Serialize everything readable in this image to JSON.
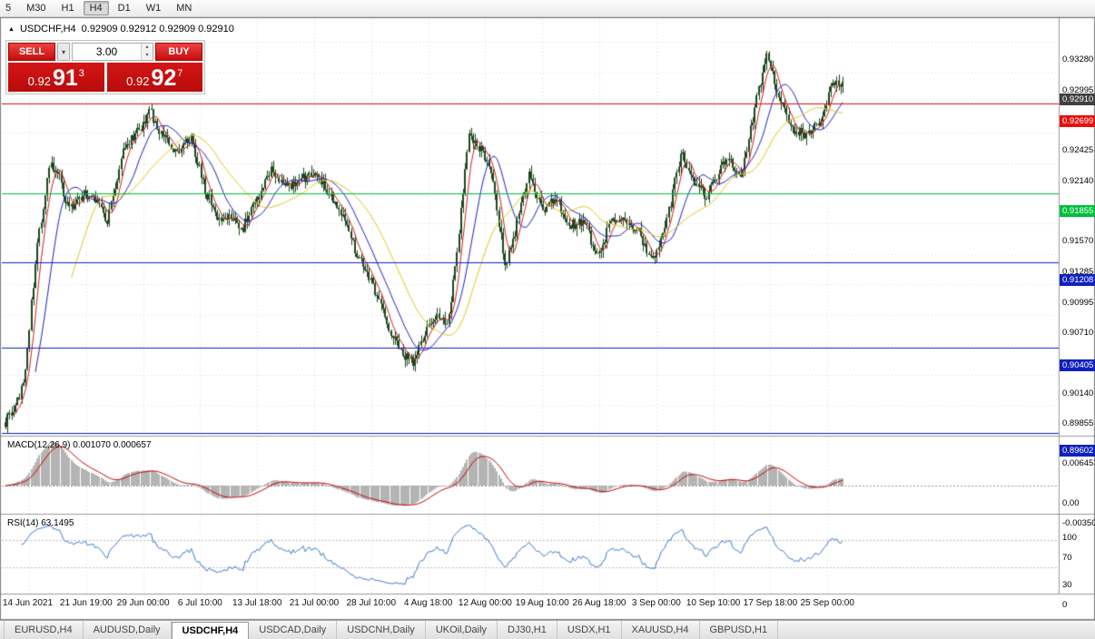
{
  "toolbar": {
    "timeframes": [
      {
        "label": "5",
        "active": false
      },
      {
        "label": "M30",
        "active": false
      },
      {
        "label": "H1",
        "active": false
      },
      {
        "label": "H4",
        "active": true
      },
      {
        "label": "D1",
        "active": false
      },
      {
        "label": "W1",
        "active": false
      },
      {
        "label": "MN",
        "active": false
      }
    ]
  },
  "chart": {
    "symbol": "USDCHF,H4",
    "ohlc_text": "0.92909 0.92912 0.92909 0.92910",
    "current_price": {
      "label": "0.92910",
      "bg": "#404040"
    }
  },
  "one_click": {
    "sell_label": "SELL",
    "buy_label": "BUY",
    "volume": "3.00",
    "sell_price": {
      "small": "0.92",
      "big": "91",
      "sup": "3"
    },
    "buy_price": {
      "small": "0.92",
      "big": "92",
      "sup": "7"
    }
  },
  "price_axis_plain": [
    "0.93280",
    "0.92995",
    "0.92425",
    "0.92140",
    "0.91570",
    "0.91285",
    "0.90995",
    "0.90710",
    "0.90140",
    "0.89855"
  ],
  "macd": {
    "title": "MACD(12,26,9) 0.001070 0.000657",
    "axis_labels": [
      "0.006451",
      "0.00",
      "-0.00350"
    ]
  },
  "rsi": {
    "title": "RSI(14) 63.1495",
    "axis_labels": [
      100,
      70,
      30,
      0
    ],
    "levels": [
      70,
      30
    ]
  },
  "time_axis": {
    "labels": [
      "14 Jun 2021",
      "21 Jun 19:00",
      "29 Jun 00:00",
      "6 Jul 10:00",
      "13 Jul 18:00",
      "21 Jul 00:00",
      "28 Jul 10:00",
      "4 Aug 18:00",
      "12 Aug 00:00",
      "19 Aug 10:00",
      "26 Aug 18:00",
      "3 Sep 00:00",
      "10 Sep 10:00",
      "17 Sep 18:00",
      "25 Sep 00:00"
    ]
  },
  "tabs": {
    "items": [
      {
        "label": "EURUSD,H4",
        "active": false
      },
      {
        "label": "AUDUSD,Daily",
        "active": false
      },
      {
        "label": "USDCHF,H4",
        "active": true
      },
      {
        "label": "USDCAD,Daily",
        "active": false
      },
      {
        "label": "USDCNH,Daily",
        "active": false
      },
      {
        "label": "UKOil,Daily",
        "active": false
      },
      {
        "label": "DJ30,H1",
        "active": false
      },
      {
        "label": "USDX,H1",
        "active": false
      },
      {
        "label": "XAUUSD,H4",
        "active": false
      },
      {
        "label": "GBPUSD,H1",
        "active": false
      }
    ]
  },
  "chart_data": {
    "type": "candlestick",
    "symbol": "USDCHF",
    "timeframe": "H4",
    "current": {
      "open": 0.92909,
      "high": 0.92912,
      "low": 0.92909,
      "close": 0.9291
    },
    "price_range": [
      0.896,
      0.9348
    ],
    "bars": 420,
    "candle_color": "#1e461e",
    "price_path": [
      [
        0.0,
        0.897
      ],
      [
        0.011,
        0.8985
      ],
      [
        0.022,
        0.9005
      ],
      [
        0.038,
        0.914
      ],
      [
        0.054,
        0.9215
      ],
      [
        0.065,
        0.92
      ],
      [
        0.076,
        0.9168
      ],
      [
        0.092,
        0.9185
      ],
      [
        0.108,
        0.9178
      ],
      [
        0.122,
        0.916
      ],
      [
        0.141,
        0.923
      ],
      [
        0.159,
        0.9245
      ],
      [
        0.173,
        0.9262
      ],
      [
        0.187,
        0.924
      ],
      [
        0.203,
        0.9225
      ],
      [
        0.222,
        0.9238
      ],
      [
        0.238,
        0.919
      ],
      [
        0.252,
        0.9165
      ],
      [
        0.268,
        0.9163
      ],
      [
        0.283,
        0.9152
      ],
      [
        0.298,
        0.9175
      ],
      [
        0.317,
        0.9208
      ],
      [
        0.333,
        0.919
      ],
      [
        0.352,
        0.9198
      ],
      [
        0.371,
        0.9205
      ],
      [
        0.387,
        0.9187
      ],
      [
        0.404,
        0.916
      ],
      [
        0.423,
        0.9123
      ],
      [
        0.441,
        0.9095
      ],
      [
        0.458,
        0.906
      ],
      [
        0.475,
        0.9032
      ],
      [
        0.488,
        0.9027
      ],
      [
        0.502,
        0.9055
      ],
      [
        0.515,
        0.907
      ],
      [
        0.528,
        0.906
      ],
      [
        0.54,
        0.9135
      ],
      [
        0.553,
        0.924
      ],
      [
        0.569,
        0.9225
      ],
      [
        0.582,
        0.92
      ],
      [
        0.597,
        0.9115
      ],
      [
        0.612,
        0.916
      ],
      [
        0.626,
        0.9205
      ],
      [
        0.641,
        0.917
      ],
      [
        0.658,
        0.918
      ],
      [
        0.675,
        0.9155
      ],
      [
        0.691,
        0.916
      ],
      [
        0.706,
        0.9125
      ],
      [
        0.723,
        0.9158
      ],
      [
        0.74,
        0.9162
      ],
      [
        0.756,
        0.915
      ],
      [
        0.773,
        0.9122
      ],
      [
        0.789,
        0.9155
      ],
      [
        0.807,
        0.9225
      ],
      [
        0.823,
        0.9195
      ],
      [
        0.838,
        0.9183
      ],
      [
        0.861,
        0.922
      ],
      [
        0.878,
        0.92
      ],
      [
        0.896,
        0.927
      ],
      [
        0.91,
        0.932
      ],
      [
        0.924,
        0.9275
      ],
      [
        0.939,
        0.9245
      ],
      [
        0.957,
        0.9242
      ],
      [
        0.972,
        0.925
      ],
      [
        0.986,
        0.9285
      ],
      [
        1.0,
        0.9291
      ]
    ],
    "moving_averages": [
      {
        "period": 6,
        "color": "#d02020"
      },
      {
        "period": 16,
        "color": "#2020c8"
      },
      {
        "period": 34,
        "color": "#e0c820"
      }
    ],
    "horizontal_lines": [
      {
        "price": 0.92699,
        "label": "0.92699",
        "color": "#e81010"
      },
      {
        "price": 0.91855,
        "label": "0.91855",
        "color": "#00c03c"
      },
      {
        "price": 0.91208,
        "label": "0.91208",
        "color": "#1020c0"
      },
      {
        "price": 0.90405,
        "label": "0.90405",
        "color": "#1020c0"
      },
      {
        "price": 0.89602,
        "label": "0.89602",
        "color": "#1020c0"
      }
    ],
    "indicators": [
      {
        "name": "MACD",
        "params": [
          12,
          26,
          9
        ],
        "current_values": [
          0.00107,
          0.000657
        ],
        "axis_range": [
          -0.0035,
          0.006451
        ],
        "histogram_color": "#b4b4b4",
        "signal_color": "#cc0000"
      },
      {
        "name": "RSI",
        "params": [
          14
        ],
        "current_value": 63.1495,
        "axis_range": [
          0,
          100
        ],
        "levels": [
          70,
          30
        ],
        "line_color": "#3c78c8"
      }
    ]
  }
}
